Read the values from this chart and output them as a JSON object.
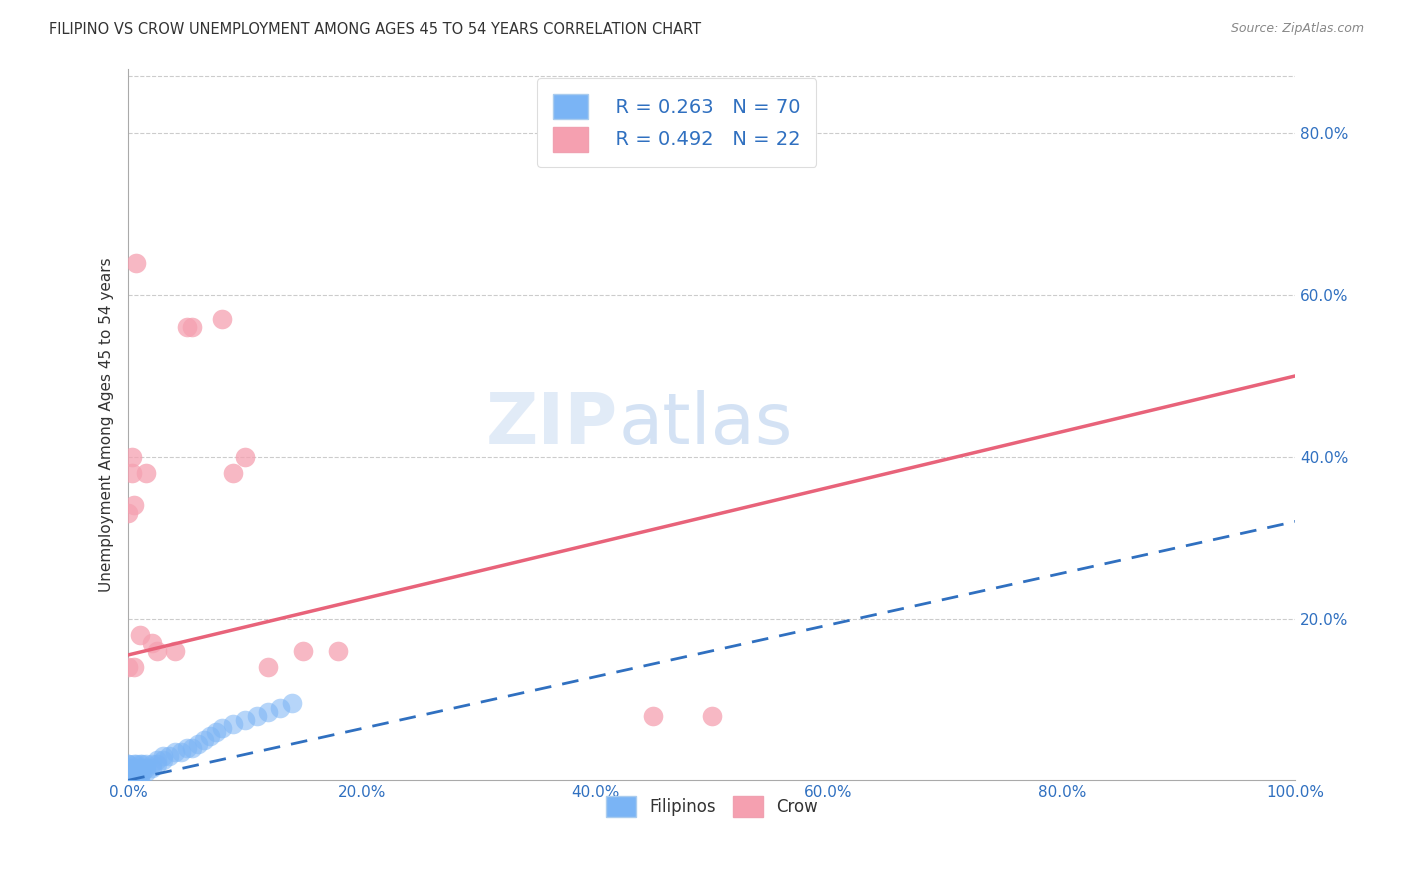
{
  "title": "FILIPINO VS CROW UNEMPLOYMENT AMONG AGES 45 TO 54 YEARS CORRELATION CHART",
  "source": "Source: ZipAtlas.com",
  "ylabel": "Unemployment Among Ages 45 to 54 years",
  "xlim": [
    0,
    1.0
  ],
  "ylim": [
    0,
    0.88
  ],
  "xticks": [
    0.0,
    0.2,
    0.4,
    0.6,
    0.8,
    1.0
  ],
  "xticklabels": [
    "0.0%",
    "20.0%",
    "40.0%",
    "60.0%",
    "80.0%",
    "100.0%"
  ],
  "yticks_right": [
    0.2,
    0.4,
    0.6,
    0.8
  ],
  "yticklabels_right": [
    "20.0%",
    "40.0%",
    "60.0%",
    "80.0%"
  ],
  "filipino_color": "#7ab4f5",
  "crow_color": "#f5a0b0",
  "filipino_line_color": "#3070c0",
  "crow_line_color": "#e8637a",
  "legend_R_filipino": "R = 0.263",
  "legend_N_filipino": "N = 70",
  "legend_R_crow": "R = 0.492",
  "legend_N_crow": "N = 22",
  "watermark_zip": "ZIP",
  "watermark_atlas": "atlas",
  "filipino_x": [
    0.0,
    0.0,
    0.0,
    0.0,
    0.0,
    0.0,
    0.0,
    0.0,
    0.0,
    0.0,
    0.0,
    0.0,
    0.0,
    0.0,
    0.0,
    0.0,
    0.0,
    0.0,
    0.0,
    0.0,
    0.003,
    0.003,
    0.003,
    0.003,
    0.003,
    0.003,
    0.003,
    0.005,
    0.005,
    0.005,
    0.005,
    0.005,
    0.005,
    0.007,
    0.007,
    0.007,
    0.007,
    0.01,
    0.01,
    0.01,
    0.01,
    0.01,
    0.012,
    0.012,
    0.012,
    0.015,
    0.015,
    0.015,
    0.02,
    0.02,
    0.025,
    0.025,
    0.03,
    0.03,
    0.035,
    0.04,
    0.045,
    0.05,
    0.055,
    0.06,
    0.065,
    0.07,
    0.075,
    0.08,
    0.09,
    0.1,
    0.11,
    0.12,
    0.13,
    0.14
  ],
  "filipino_y": [
    0.0,
    0.0,
    0.0,
    0.0,
    0.0,
    0.0,
    0.0,
    0.0,
    0.0,
    0.0,
    0.005,
    0.005,
    0.005,
    0.01,
    0.01,
    0.01,
    0.015,
    0.015,
    0.02,
    0.02,
    0.0,
    0.0,
    0.005,
    0.005,
    0.01,
    0.01,
    0.015,
    0.0,
    0.005,
    0.005,
    0.01,
    0.015,
    0.02,
    0.005,
    0.01,
    0.015,
    0.02,
    0.0,
    0.005,
    0.01,
    0.015,
    0.02,
    0.01,
    0.015,
    0.02,
    0.01,
    0.015,
    0.02,
    0.015,
    0.02,
    0.02,
    0.025,
    0.025,
    0.03,
    0.03,
    0.035,
    0.035,
    0.04,
    0.04,
    0.045,
    0.05,
    0.055,
    0.06,
    0.065,
    0.07,
    0.075,
    0.08,
    0.085,
    0.09,
    0.095
  ],
  "crow_x": [
    0.0,
    0.0,
    0.003,
    0.003,
    0.005,
    0.005,
    0.007,
    0.01,
    0.015,
    0.02,
    0.025,
    0.04,
    0.05,
    0.055,
    0.08,
    0.09,
    0.1,
    0.12,
    0.15,
    0.18,
    0.45,
    0.5
  ],
  "crow_y": [
    0.14,
    0.33,
    0.38,
    0.4,
    0.14,
    0.34,
    0.64,
    0.18,
    0.38,
    0.17,
    0.16,
    0.16,
    0.56,
    0.56,
    0.57,
    0.38,
    0.4,
    0.14,
    0.16,
    0.16,
    0.08,
    0.08
  ]
}
